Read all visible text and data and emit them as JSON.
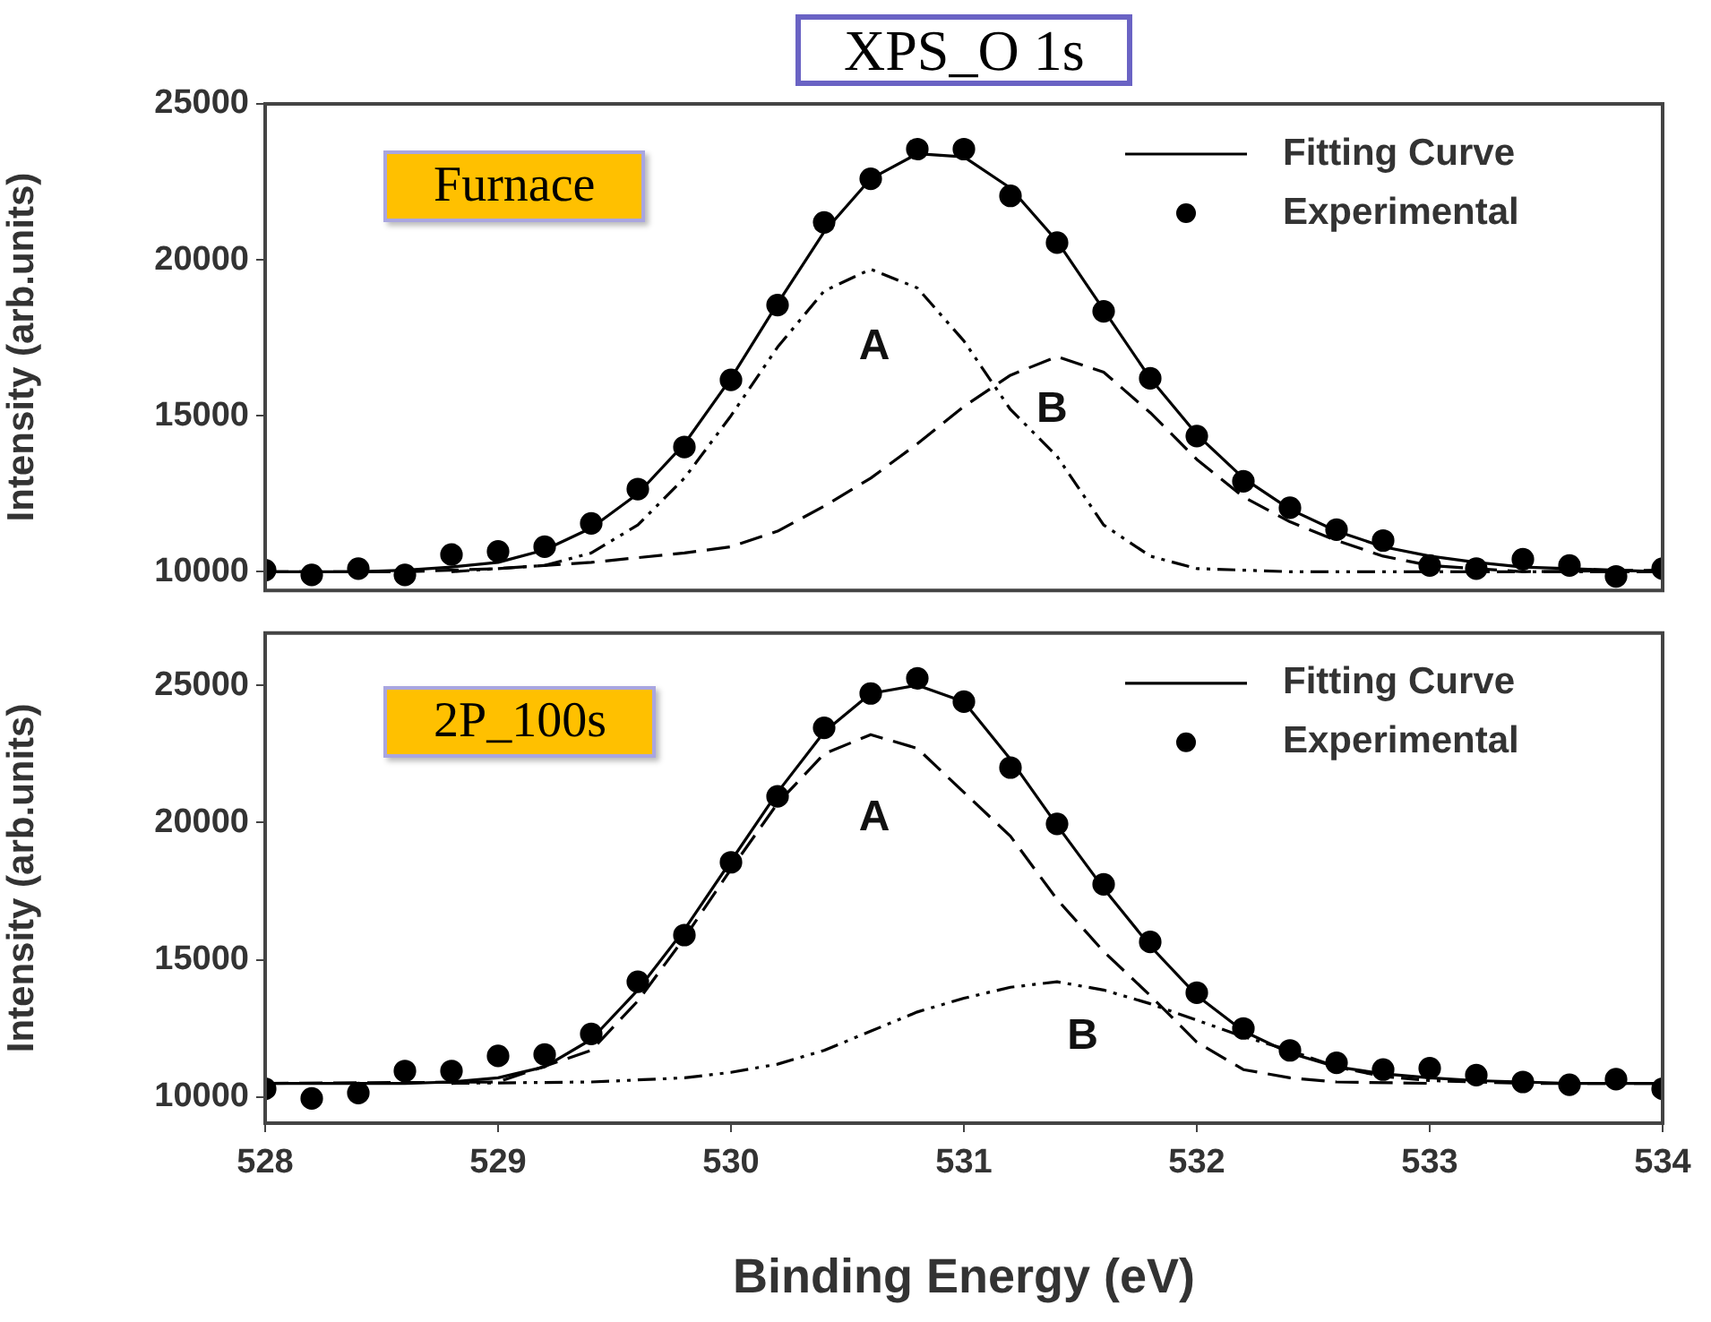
{
  "chart_data": [
    {
      "type": "line",
      "title": "XPS_O 1s",
      "ylabel": "Intensity (arb.units)",
      "xlim": [
        528,
        534
      ],
      "xticks": [
        528,
        529,
        530,
        531,
        532,
        533,
        534
      ],
      "ylim": [
        9400,
        25000
      ],
      "yticks": [
        10000,
        15000,
        20000,
        25000
      ],
      "tick_labels": "y",
      "legend": "top right",
      "annotations": [
        "Furnace",
        "A",
        "B"
      ],
      "series": [
        {
          "name": "Fitting Curve",
          "type": "line",
          "color": "#000000",
          "marker": "none",
          "line_style": "solid",
          "x": [
            528,
            528.2,
            528.4,
            528.6,
            528.8,
            529,
            529.2,
            529.4,
            529.6,
            529.8,
            530,
            530.2,
            530.4,
            530.6,
            530.8,
            531,
            531.2,
            531.4,
            531.6,
            531.8,
            532,
            532.2,
            532.4,
            532.6,
            532.8,
            533,
            533.2,
            533.4,
            533.6,
            533.8,
            534
          ],
          "values": [
            10000,
            10000,
            10000,
            10050,
            10150,
            10300,
            10700,
            11400,
            12500,
            14100,
            16200,
            18600,
            20900,
            22600,
            23400,
            23300,
            22300,
            20600,
            18400,
            16200,
            14400,
            13000,
            12000,
            11300,
            10800,
            10500,
            10300,
            10150,
            10100,
            10050,
            10000
          ]
        },
        {
          "name": "Experimental",
          "type": "scatter",
          "color": "#000000",
          "marker": "circle",
          "x": [
            528,
            528.2,
            528.4,
            528.6,
            528.8,
            529,
            529.2,
            529.4,
            529.6,
            529.8,
            530,
            530.2,
            530.4,
            530.6,
            530.8,
            531,
            531.2,
            531.4,
            531.6,
            531.8,
            532,
            532.2,
            532.4,
            532.6,
            532.8,
            533,
            533.2,
            533.4,
            533.6,
            533.8,
            534
          ],
          "values": [
            10050,
            9900,
            10100,
            9900,
            10550,
            10650,
            10800,
            11550,
            12650,
            14000,
            16150,
            18550,
            21200,
            22600,
            23550,
            23550,
            22050,
            20550,
            18350,
            16200,
            14350,
            12900,
            12050,
            11350,
            11000,
            10200,
            10100,
            10400,
            10200,
            9850,
            10100
          ]
        },
        {
          "type": "line",
          "color": "#000000",
          "marker": "none",
          "line_style": "dotted",
          "x": [
            528.8,
            529.2,
            529.4,
            529.6,
            529.8,
            530,
            530.2,
            530.4,
            530.6,
            530.8,
            531,
            531.2,
            531.4,
            531.6,
            531.8,
            532,
            532.4,
            533,
            534
          ],
          "values": [
            10000,
            10200,
            10600,
            11500,
            13000,
            15000,
            17200,
            19000,
            19700,
            19100,
            17400,
            15200,
            13700,
            11500,
            10500,
            10100,
            10000,
            10000,
            10000
          ]
        },
        {
          "type": "line",
          "color": "#000000",
          "marker": "none",
          "line_style": "dashed",
          "x": [
            528,
            528.6,
            529,
            529.4,
            529.8,
            530,
            530.2,
            530.4,
            530.6,
            530.8,
            531,
            531.2,
            531.4,
            531.6,
            531.8,
            532,
            532.2,
            532.4,
            532.6,
            532.8,
            533,
            533.4,
            534
          ],
          "values": [
            10000,
            10000,
            10100,
            10300,
            10600,
            10800,
            11300,
            12100,
            13000,
            14100,
            15300,
            16300,
            16900,
            16400,
            15100,
            13600,
            12400,
            11600,
            11000,
            10500,
            10200,
            10000,
            10050
          ]
        }
      ]
    },
    {
      "type": "line",
      "xlabel": "Binding Energy (eV)",
      "ylabel": "Intensity (arb.units)",
      "xlim": [
        528,
        534
      ],
      "xticks": [
        528,
        529,
        530,
        531,
        532,
        533,
        534
      ],
      "ylim": [
        9050,
        26900
      ],
      "yticks": [
        10000,
        15000,
        20000,
        25000
      ],
      "legend": "top right",
      "annotations": [
        "2P_100s",
        "A",
        "B"
      ],
      "series": [
        {
          "name": "Fitting Curve",
          "type": "line",
          "color": "#000000",
          "marker": "none",
          "line_style": "solid",
          "x": [
            528,
            528.2,
            528.4,
            528.6,
            528.8,
            529,
            529.2,
            529.4,
            529.6,
            529.8,
            530,
            530.2,
            530.4,
            530.6,
            530.8,
            531,
            531.2,
            531.4,
            531.6,
            531.8,
            532,
            532.2,
            532.4,
            532.6,
            532.8,
            533,
            533.2,
            533.4,
            533.6,
            533.8,
            534
          ],
          "values": [
            10500,
            10500,
            10500,
            10500,
            10550,
            10700,
            11100,
            12100,
            13900,
            16100,
            18600,
            21100,
            23300,
            24700,
            25000,
            24400,
            22300,
            19900,
            17600,
            15500,
            13700,
            12400,
            11600,
            11100,
            10850,
            10700,
            10600,
            10550,
            10500,
            10500,
            10500
          ]
        },
        {
          "name": "Experimental",
          "type": "scatter",
          "color": "#000000",
          "marker": "circle",
          "x": [
            528,
            528.2,
            528.4,
            528.6,
            528.8,
            529,
            529.2,
            529.4,
            529.6,
            529.8,
            530,
            530.2,
            530.4,
            530.6,
            530.8,
            531,
            531.2,
            531.4,
            531.6,
            531.8,
            532,
            532.2,
            532.4,
            532.6,
            532.8,
            533,
            533.2,
            533.4,
            533.6,
            533.8,
            534
          ],
          "values": [
            10300,
            9950,
            10150,
            10950,
            10950,
            11500,
            11550,
            12300,
            14200,
            15900,
            18550,
            20950,
            23450,
            24700,
            25250,
            24400,
            22000,
            19950,
            17750,
            15650,
            13800,
            12500,
            11700,
            11250,
            11000,
            11050,
            10800,
            10550,
            10450,
            10650,
            10300
          ]
        },
        {
          "type": "line",
          "color": "#000000",
          "marker": "none",
          "line_style": "dashed",
          "x": [
            528,
            529,
            529.4,
            529.6,
            529.8,
            530,
            530.2,
            530.4,
            530.6,
            530.8,
            531,
            531.2,
            531.4,
            531.6,
            531.8,
            532,
            532.2,
            532.4,
            532.6,
            533
          ],
          "values": [
            10500,
            10550,
            11700,
            13500,
            15800,
            18300,
            20700,
            22500,
            23200,
            22700,
            21100,
            19500,
            17200,
            15300,
            13700,
            12000,
            11000,
            10700,
            10550,
            10500
          ]
        },
        {
          "type": "line",
          "color": "#000000",
          "marker": "none",
          "line_style": "dotted",
          "x": [
            528.8,
            529.4,
            529.8,
            530,
            530.2,
            530.4,
            530.6,
            530.8,
            531,
            531.2,
            531.4,
            531.6,
            531.8,
            532,
            532.2,
            532.4,
            532.6,
            532.8,
            533,
            533.4,
            534
          ],
          "values": [
            10500,
            10550,
            10700,
            10900,
            11200,
            11700,
            12400,
            13100,
            13600,
            14000,
            14200,
            13900,
            13400,
            12800,
            12200,
            11700,
            11100,
            10750,
            10600,
            10500,
            10500
          ]
        }
      ]
    }
  ]
}
